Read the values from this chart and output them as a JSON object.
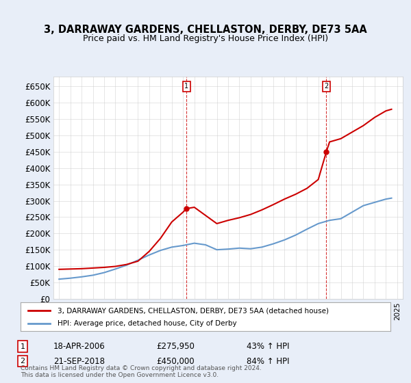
{
  "title": "3, DARRAWAY GARDENS, CHELLASTON, DERBY, DE73 5AA",
  "subtitle": "Price paid vs. HM Land Registry's House Price Index (HPI)",
  "legend_line1": "3, DARRAWAY GARDENS, CHELLASTON, DERBY, DE73 5AA (detached house)",
  "legend_line2": "HPI: Average price, detached house, City of Derby",
  "footnote": "Contains HM Land Registry data © Crown copyright and database right 2024.\nThis data is licensed under the Open Government Licence v3.0.",
  "annotation1_label": "1",
  "annotation1_date": "18-APR-2006",
  "annotation1_price": "£275,950",
  "annotation1_hpi": "43% ↑ HPI",
  "annotation1_year": 2006.3,
  "annotation1_value": 275950,
  "annotation2_label": "2",
  "annotation2_date": "21-SEP-2018",
  "annotation2_price": "£450,000",
  "annotation2_hpi": "84% ↑ HPI",
  "annotation2_year": 2018.72,
  "annotation2_value": 450000,
  "red_color": "#cc0000",
  "blue_color": "#6699cc",
  "vline_color": "#cc0000",
  "bg_color": "#e8eef8",
  "plot_bg": "#ffffff",
  "grid_color": "#cccccc",
  "ylim": [
    0,
    680000
  ],
  "yticks": [
    0,
    50000,
    100000,
    150000,
    200000,
    250000,
    300000,
    350000,
    400000,
    450000,
    500000,
    550000,
    600000,
    650000
  ],
  "ytick_labels": [
    "£0",
    "£50K",
    "£100K",
    "£150K",
    "£200K",
    "£250K",
    "£300K",
    "£350K",
    "£400K",
    "£450K",
    "£500K",
    "£550K",
    "£600K",
    "£650K"
  ],
  "xlim": [
    1994.5,
    2025.5
  ],
  "red_years": [
    1995,
    1996,
    1997,
    1998,
    1999,
    2000,
    2001,
    2002,
    2003,
    2004,
    2005,
    2006,
    2006.3,
    2007,
    2008,
    2009,
    2010,
    2011,
    2012,
    2013,
    2014,
    2015,
    2016,
    2017,
    2018,
    2018.72,
    2019,
    2020,
    2021,
    2022,
    2023,
    2024,
    2024.5
  ],
  "red_values": [
    90000,
    91000,
    92000,
    94000,
    96000,
    99000,
    105000,
    115000,
    145000,
    185000,
    235000,
    265000,
    275950,
    280000,
    255000,
    230000,
    240000,
    248000,
    258000,
    272000,
    288000,
    305000,
    320000,
    338000,
    365000,
    450000,
    480000,
    490000,
    510000,
    530000,
    555000,
    575000,
    580000
  ],
  "blue_years": [
    1995,
    1996,
    1997,
    1998,
    1999,
    2000,
    2001,
    2002,
    2003,
    2004,
    2005,
    2006,
    2007,
    2008,
    2009,
    2010,
    2011,
    2012,
    2013,
    2014,
    2015,
    2016,
    2017,
    2018,
    2019,
    2020,
    2021,
    2022,
    2023,
    2024,
    2024.5
  ],
  "blue_values": [
    60000,
    63000,
    67000,
    72000,
    80000,
    91000,
    103000,
    118000,
    134000,
    148000,
    158000,
    163000,
    170000,
    165000,
    150000,
    152000,
    155000,
    153000,
    158000,
    168000,
    180000,
    195000,
    213000,
    230000,
    240000,
    245000,
    265000,
    285000,
    295000,
    305000,
    308000
  ]
}
